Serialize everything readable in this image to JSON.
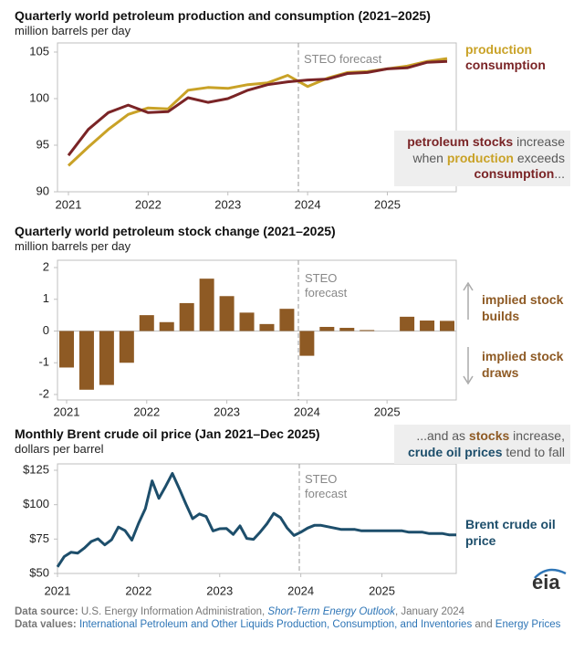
{
  "chart_data": [
    {
      "type": "line",
      "title": "Quarterly world petroleum production and consumption (2021–2025)",
      "subtitle": "million barrels per day",
      "categories": [
        "2021",
        null,
        null,
        null,
        "2022",
        null,
        null,
        null,
        "2023",
        null,
        null,
        null,
        "2024",
        null,
        null,
        null,
        "2025",
        null,
        null,
        null
      ],
      "series": [
        {
          "name": "production",
          "color": "#c9a227",
          "values": [
            92.8,
            94.8,
            96.7,
            98.3,
            99.0,
            98.9,
            100.9,
            101.2,
            101.1,
            101.5,
            101.7,
            102.5,
            101.3,
            102.2,
            102.8,
            102.9,
            103.2,
            103.5,
            104.0,
            104.3
          ]
        },
        {
          "name": "consumption",
          "color": "#7a2426",
          "values": [
            93.9,
            96.7,
            98.5,
            99.3,
            98.5,
            98.6,
            100.1,
            99.6,
            100.0,
            100.9,
            101.5,
            101.8,
            102.0,
            102.1,
            102.7,
            102.8,
            103.2,
            103.3,
            103.9,
            104.0
          ]
        }
      ],
      "ylim": [
        90,
        105
      ],
      "yticks": [
        90,
        95,
        100,
        105
      ],
      "grid": false,
      "forecast_label": "STEO forecast",
      "annotation": [
        {
          "text": "petroleum stocks",
          "color": "#7a2426",
          "bold": true
        },
        {
          "text": " increase when ",
          "color": "#595959",
          "bold": false
        },
        {
          "text": "production",
          "color": "#c9a227",
          "bold": true
        },
        {
          "text": " exceeds ",
          "color": "#595959",
          "bold": false
        },
        {
          "text": "consumption",
          "color": "#7a2426",
          "bold": true
        },
        {
          "text": "...",
          "color": "#595959",
          "bold": false
        }
      ]
    },
    {
      "type": "bar",
      "title": "Quarterly world petroleum stock change (2021–2025)",
      "subtitle": "million barrels per day",
      "categories": [
        "2021",
        null,
        null,
        null,
        "2022",
        null,
        null,
        null,
        "2023",
        null,
        null,
        null,
        "2024",
        null,
        null,
        null,
        "2025",
        null,
        null,
        null
      ],
      "values": [
        -1.15,
        -1.85,
        -1.7,
        -1.0,
        0.5,
        0.28,
        0.88,
        1.65,
        1.1,
        0.58,
        0.22,
        0.7,
        -0.78,
        0.13,
        0.1,
        0.03,
        0.0,
        0.45,
        0.33,
        0.32
      ],
      "color": "#8e5a24",
      "ylim": [
        -2,
        2
      ],
      "yticks": [
        -2,
        -1,
        0,
        1,
        2
      ],
      "grid": false,
      "forecast_label": "STEO forecast",
      "side_labels": [
        "implied stock builds",
        "implied stock draws"
      ]
    },
    {
      "type": "line",
      "title": "Monthly Brent crude oil price (Jan 2021–Dec 2025)",
      "subtitle": "dollars per barrel",
      "categories": [
        "2021",
        null,
        null,
        null,
        null,
        null,
        null,
        null,
        null,
        null,
        null,
        null,
        "2022",
        null,
        null,
        null,
        null,
        null,
        null,
        null,
        null,
        null,
        null,
        null,
        "2023",
        null,
        null,
        null,
        null,
        null,
        null,
        null,
        null,
        null,
        null,
        null,
        "2024",
        null,
        null,
        null,
        null,
        null,
        null,
        null,
        null,
        null,
        null,
        null,
        "2025",
        null,
        null,
        null,
        null,
        null,
        null,
        null,
        null,
        null,
        null,
        null
      ],
      "series": [
        {
          "name": "Brent crude oil price",
          "color": "#1d4e6b",
          "values": [
            54.8,
            62.3,
            65.4,
            64.8,
            68.5,
            73.2,
            75.2,
            70.8,
            74.5,
            83.7,
            81.1,
            74.2,
            86.5,
            97.1,
            117.3,
            104.6,
            113.3,
            122.7,
            111.9,
            100.5,
            89.8,
            93.3,
            91.4,
            80.9,
            82.5,
            82.7,
            78.4,
            84.6,
            75.5,
            74.8,
            80.1,
            86.2,
            93.7,
            90.6,
            82.9,
            77.6,
            80,
            83,
            85,
            85,
            84,
            83,
            82,
            82,
            82,
            81,
            81,
            81,
            81,
            81,
            81,
            81,
            80,
            80,
            80,
            79,
            79,
            79,
            78,
            78
          ]
        }
      ],
      "ylim": [
        50,
        125
      ],
      "yticks": [
        {
          "value": 50,
          "label": "$50"
        },
        {
          "value": 75,
          "label": "$75"
        },
        {
          "value": 100,
          "label": "$100"
        },
        {
          "value": 125,
          "label": "$125"
        }
      ],
      "grid": false,
      "forecast_label": "STEO forecast",
      "annotation": [
        {
          "text": "...and as ",
          "color": "#595959",
          "bold": false
        },
        {
          "text": "stocks",
          "color": "#8e5a24",
          "bold": true
        },
        {
          "text": " increase, ",
          "color": "#595959",
          "bold": false
        },
        {
          "text": "crude oil prices",
          "color": "#1d4e6b",
          "bold": true
        },
        {
          "text": " tend to fall",
          "color": "#595959",
          "bold": false
        }
      ]
    }
  ],
  "footer": [
    [
      {
        "text": "Data source:",
        "style": "bold"
      },
      {
        "text": " U.S. Energy Information Administration, ",
        "style": "plain"
      },
      {
        "text": "Short-Term Energy Outlook",
        "style": "link-italic"
      },
      {
        "text": ", January 2024",
        "style": "plain"
      }
    ],
    [
      {
        "text": "Data values:",
        "style": "bold"
      },
      {
        "text": " ",
        "style": "plain"
      },
      {
        "text": "International Petroleum and Other Liquids Production, Consumption, and Inventories",
        "style": "link"
      },
      {
        "text": " and ",
        "style": "plain"
      },
      {
        "text": "Energy Prices",
        "style": "link"
      }
    ]
  ],
  "logo": "eia"
}
